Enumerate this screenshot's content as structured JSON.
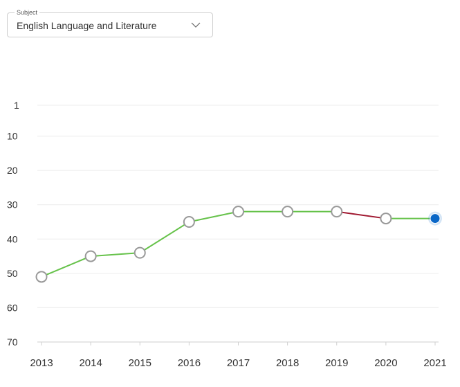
{
  "subject_select": {
    "label": "Subject",
    "value": "English Language and Literature"
  },
  "chart_data": {
    "type": "line",
    "x": [
      "2013",
      "2014",
      "2015",
      "2016",
      "2017",
      "2018",
      "2019",
      "2020",
      "2021"
    ],
    "y_ticks": [
      1,
      10,
      20,
      30,
      40,
      50,
      60,
      70
    ],
    "values": [
      51,
      45,
      44,
      35,
      32,
      32,
      32,
      34,
      34
    ],
    "ylim": [
      1,
      70
    ],
    "y_inverted": true,
    "grid": true,
    "colors": {
      "rising": "#66c24a",
      "falling": "#a01830",
      "marker_fill": "#ffffff",
      "marker_stroke": "#999999",
      "highlight": "#0a67c7"
    }
  }
}
